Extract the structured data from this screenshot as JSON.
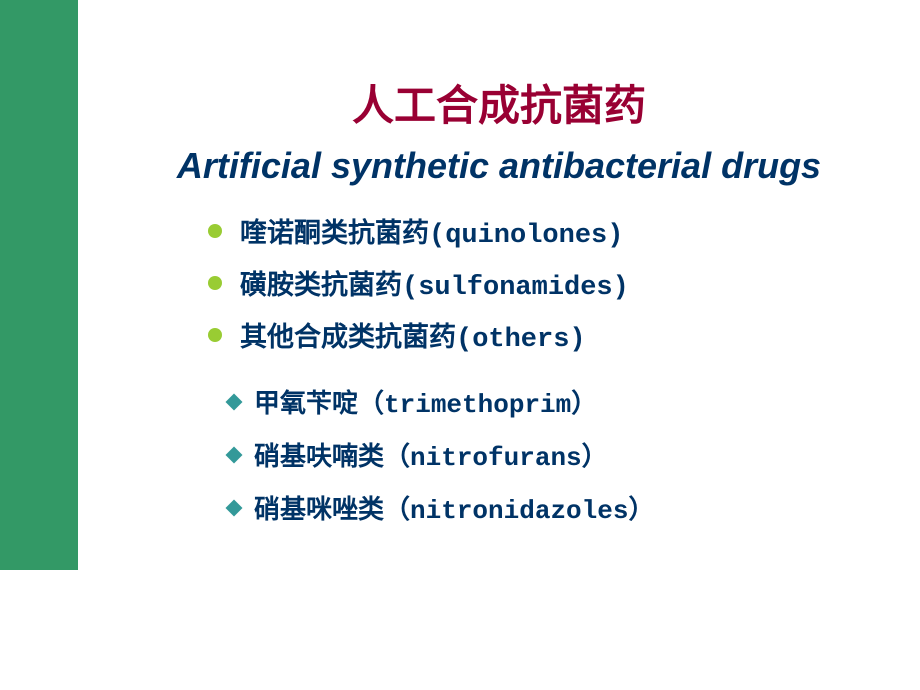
{
  "colors": {
    "side_panel": "#339966",
    "title_zh": "#990033",
    "title_en": "#003366",
    "body_text": "#003366",
    "bullet_dot": "#99cc33",
    "sub_diamond": "#339999",
    "background": "#ffffff"
  },
  "typography": {
    "title_zh_fontsize": 42,
    "title_en_fontsize": 36,
    "bullet_fontsize": 27,
    "sub_fontsize": 26,
    "en_font": "Courier New",
    "zh_font": "SimHei"
  },
  "layout": {
    "side_panel_width": 78,
    "side_panel_height": 570,
    "bullet_indent": 130,
    "sub_indent": 150
  },
  "title": {
    "zh": "人工合成抗菌药",
    "en": "Artificial synthetic antibacterial drugs"
  },
  "bullets": [
    {
      "zh": "喹诺酮类抗菌药",
      "en": "(quinolones)"
    },
    {
      "zh": "磺胺类抗菌药",
      "en": "(sulfonamides)"
    },
    {
      "zh": "其他合成类抗菌药",
      "en": "(others)"
    }
  ],
  "sub_bullets": [
    {
      "zh": "甲氧苄啶",
      "en": "（trimethoprim）"
    },
    {
      "zh": "硝基呋喃类",
      "en": "（nitrofurans）"
    },
    {
      "zh": "硝基咪唑类",
      "en": "（nitronidazoles）"
    }
  ]
}
